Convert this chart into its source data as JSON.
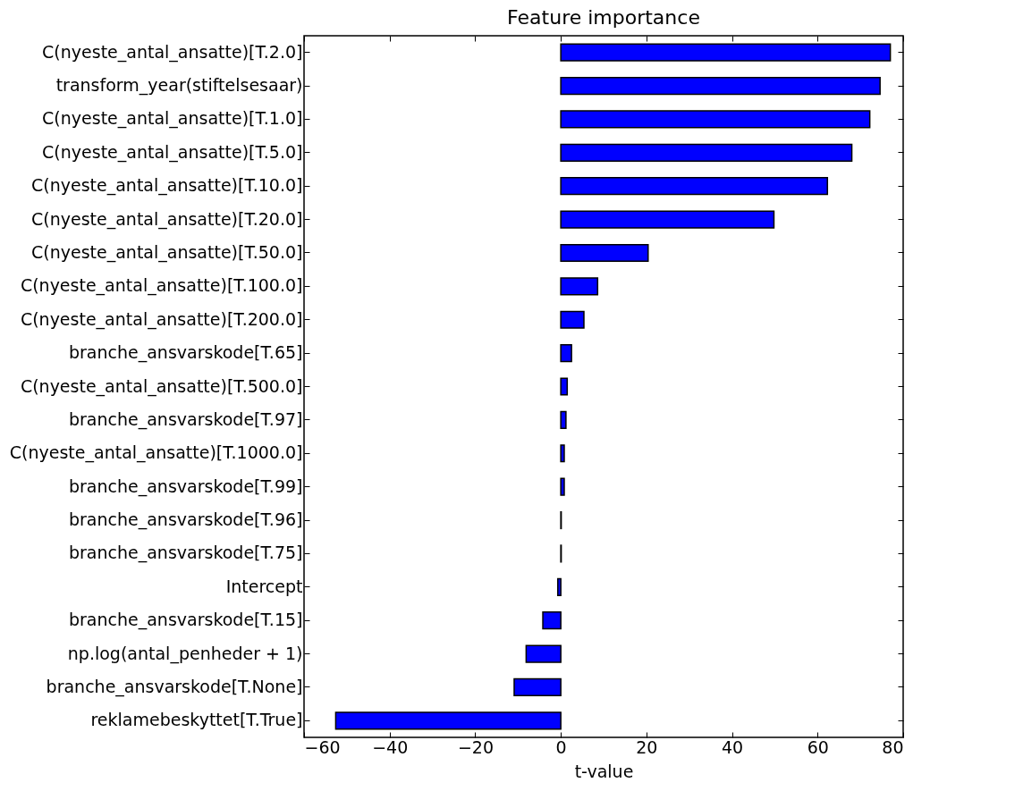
{
  "chart_data": {
    "type": "bar",
    "orientation": "horizontal",
    "title": "Feature importance",
    "xlabel": "t-value",
    "categories": [
      "C(nyeste_antal_ansatte)[T.2.0]",
      "transform_year(stiftelsesaar)",
      "C(nyeste_antal_ansatte)[T.1.0]",
      "C(nyeste_antal_ansatte)[T.5.0]",
      "C(nyeste_antal_ansatte)[T.10.0]",
      "C(nyeste_antal_ansatte)[T.20.0]",
      "C(nyeste_antal_ansatte)[T.50.0]",
      "C(nyeste_antal_ansatte)[T.100.0]",
      "C(nyeste_antal_ansatte)[T.200.0]",
      "branche_ansvarskode[T.65]",
      "C(nyeste_antal_ansatte)[T.500.0]",
      "branche_ansvarskode[T.97]",
      "C(nyeste_antal_ansatte)[T.1000.0]",
      "branche_ansvarskode[T.99]",
      "branche_ansvarskode[T.96]",
      "branche_ansvarskode[T.75]",
      "Intercept",
      "branche_ansvarskode[T.15]",
      "np.log(antal_penheder + 1)",
      "branche_ansvarskode[T.None]",
      "reklamebeskyttet[T.True]"
    ],
    "values": [
      77.0,
      74.6,
      72.2,
      68.0,
      62.3,
      49.8,
      20.4,
      8.6,
      5.4,
      2.5,
      1.5,
      1.2,
      0.8,
      0.8,
      0.1,
      0.1,
      -0.7,
      -4.2,
      -8.1,
      -10.9,
      -52.6
    ],
    "color": "#0000ff",
    "xlim": [
      -60,
      80
    ],
    "xticks": [
      -60,
      -40,
      -20,
      0,
      20,
      40,
      60,
      80
    ],
    "grid": false
  }
}
